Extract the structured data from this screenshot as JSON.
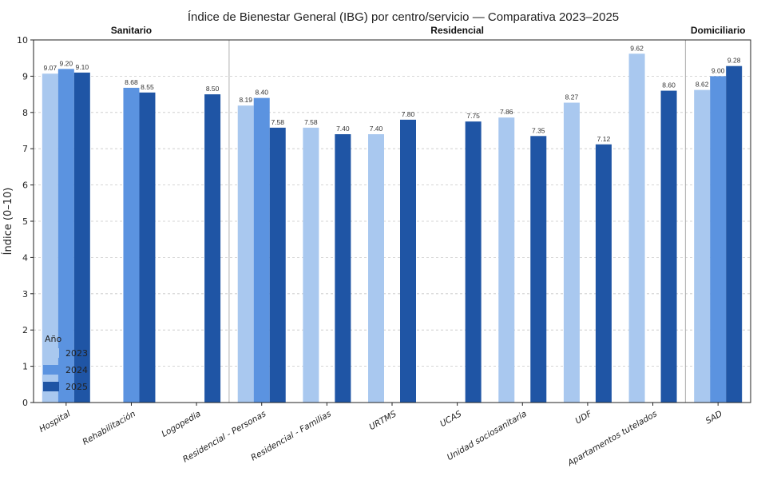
{
  "chart_data": {
    "type": "bar",
    "title": "Índice de Bienestar General (IBG) por centro/servicio — Comparativa 2023–2025",
    "ylabel": "Índice (0–10)",
    "xlabel": "",
    "ylim": [
      0,
      10
    ],
    "yticks": [
      0,
      1,
      2,
      3,
      4,
      5,
      6,
      7,
      8,
      9,
      10
    ],
    "grid": "horizontal dashed",
    "categories": [
      "Hospital",
      "Rehabilitación",
      "Logopedia",
      "Residencial - Personas",
      "Residencial - Familias",
      "URTMS",
      "UCAS",
      "Unidad sociosanitaria",
      "UDF",
      "Apartamentos tutelados",
      "SAD"
    ],
    "series": [
      {
        "name": "2023",
        "color": "#a9c8ef",
        "values": [
          9.07,
          null,
          null,
          8.19,
          7.58,
          7.4,
          null,
          7.86,
          8.27,
          9.62,
          8.62
        ]
      },
      {
        "name": "2024",
        "color": "#5b93e0",
        "values": [
          9.2,
          8.68,
          null,
          8.4,
          null,
          null,
          null,
          null,
          null,
          null,
          9.0
        ]
      },
      {
        "name": "2025",
        "color": "#1f55a5",
        "values": [
          9.1,
          8.55,
          8.5,
          7.58,
          7.4,
          7.8,
          7.75,
          7.35,
          7.12,
          8.6,
          9.28
        ]
      }
    ],
    "groups": [
      {
        "label": "Sanitario",
        "from": 0,
        "to": 2
      },
      {
        "label": "Residencial",
        "from": 3,
        "to": 9
      },
      {
        "label": "Domiciliario",
        "from": 10,
        "to": 10
      }
    ],
    "legend": {
      "title": "Año",
      "position": "lower-left",
      "entries": [
        "2023",
        "2024",
        "2025"
      ]
    }
  }
}
